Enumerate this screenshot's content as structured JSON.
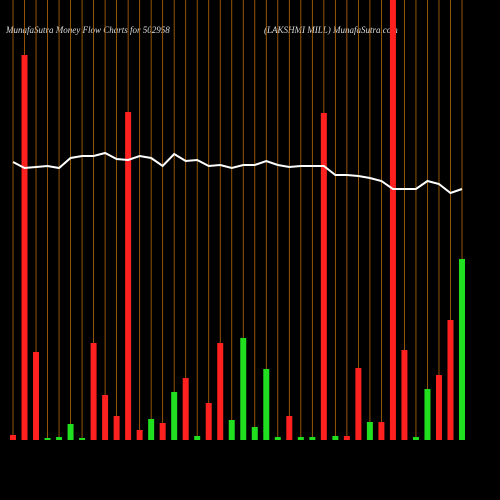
{
  "chart_data": {
    "type": "bar",
    "title": "MunafaSutra  Money Flow  Charts for 502958",
    "subtitle": "(LAKSHMI MILL) MunafaSutra.com",
    "categories": [
      null,
      null,
      null,
      null,
      null,
      null,
      null,
      null,
      null,
      null,
      null,
      null,
      null,
      null,
      null,
      null,
      null,
      null,
      null,
      null,
      null,
      null,
      null,
      null,
      null,
      null,
      null,
      null,
      null,
      null,
      null,
      null,
      null,
      null,
      null,
      null,
      null,
      null,
      null,
      null
    ],
    "series": [
      {
        "values": [
          5,
          385,
          88,
          2,
          3,
          16,
          2,
          97,
          45,
          24,
          328,
          10,
          21,
          17,
          48,
          62,
          4,
          37,
          97,
          20,
          102,
          13,
          71,
          3,
          24,
          3,
          3,
          327,
          4,
          4,
          72,
          18,
          18,
          440,
          90,
          3,
          51,
          65,
          120,
          181
        ],
        "colors": [
          "#ff2020",
          "#ff2020",
          "#ff2020",
          "#20e020",
          "#20e020",
          "#20e020",
          "#20e020",
          "#ff2020",
          "#ff2020",
          "#ff2020",
          "#ff2020",
          "#ff2020",
          "#20e020",
          "#ff2020",
          "#20e020",
          "#ff2020",
          "#20e020",
          "#ff2020",
          "#ff2020",
          "#20e020",
          "#20e020",
          "#20e020",
          "#20e020",
          "#20e020",
          "#ff2020",
          "#20e020",
          "#20e020",
          "#ff2020",
          "#20e020",
          "#ff2020",
          "#ff2020",
          "#20e020",
          "#ff2020",
          "#ff2020",
          "#ff2020",
          "#20e020",
          "#20e020",
          "#ff2020",
          "#ff2020",
          "#20e020"
        ]
      },
      {
        "type": "line",
        "color": "#ffffff",
        "values": [
          278,
          272,
          273,
          274,
          272,
          282,
          284,
          284,
          287,
          281,
          280,
          284,
          282,
          274,
          286,
          279,
          280,
          274,
          275,
          272,
          275,
          275,
          279,
          275,
          273,
          274,
          274,
          274,
          265,
          265,
          264,
          262,
          259,
          251,
          251,
          251,
          259,
          256,
          247,
          251
        ]
      }
    ],
    "ylim": [
      0,
      440
    ],
    "gridline_color": "#b8690a"
  }
}
